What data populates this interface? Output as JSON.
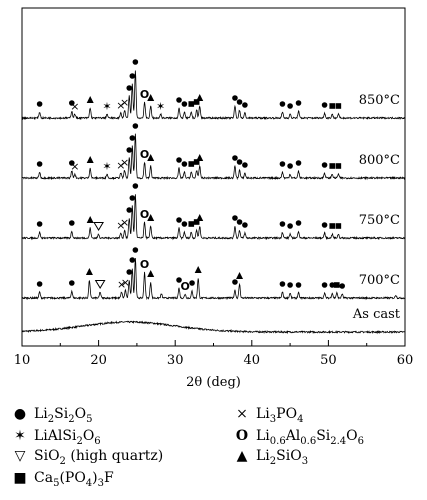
{
  "chart_data": {
    "type": "line",
    "xlabel": "2θ (deg)",
    "ylabel": "",
    "xlim": [
      10,
      60
    ],
    "xticks": [
      10,
      20,
      30,
      40,
      50,
      60
    ],
    "grid": false,
    "series": [
      {
        "name": "As cast",
        "baseline": 0,
        "label": "As cast",
        "hump": {
          "center": 24,
          "width": 6,
          "height": 10
        },
        "peaks": []
      },
      {
        "name": "700°C",
        "baseline": 1,
        "label": "700°C",
        "peaks": [
          {
            "x": 12.3,
            "h": 6,
            "m": "dot"
          },
          {
            "x": 16.5,
            "h": 7,
            "m": "dot"
          },
          {
            "x": 18.8,
            "h": 18,
            "m": "tri"
          },
          {
            "x": 20.2,
            "h": 6,
            "m": "tri-open"
          },
          {
            "x": 23.0,
            "h": 6,
            "m": "cross"
          },
          {
            "x": 23.5,
            "h": 8,
            "m": "cross"
          },
          {
            "x": 24.0,
            "h": 18,
            "m": "dot"
          },
          {
            "x": 24.4,
            "h": 30,
            "m": "dot"
          },
          {
            "x": 24.8,
            "h": 40,
            "m": "dot"
          },
          {
            "x": 26.0,
            "h": 26,
            "m": "circle"
          },
          {
            "x": 26.8,
            "h": 16,
            "m": "tri"
          },
          {
            "x": 28.2,
            "h": 4
          },
          {
            "x": 30.5,
            "h": 10,
            "m": "dot"
          },
          {
            "x": 31.3,
            "h": 4,
            "m": "circle"
          },
          {
            "x": 32.2,
            "h": 7,
            "m": "dot"
          },
          {
            "x": 33.0,
            "h": 20,
            "m": "tri"
          },
          {
            "x": 37.8,
            "h": 8,
            "m": "dot"
          },
          {
            "x": 38.4,
            "h": 14,
            "m": "tri"
          },
          {
            "x": 44.0,
            "h": 6,
            "m": "dot"
          },
          {
            "x": 45.0,
            "h": 5,
            "m": "dot"
          },
          {
            "x": 46.1,
            "h": 5,
            "m": "dot"
          },
          {
            "x": 49.5,
            "h": 5,
            "m": "dot"
          },
          {
            "x": 50.5,
            "h": 5,
            "m": "dot"
          },
          {
            "x": 51.1,
            "h": 5,
            "m": "sq"
          },
          {
            "x": 51.8,
            "h": 4,
            "m": "dot"
          },
          {
            "x": 58.8,
            "h": 3
          }
        ]
      },
      {
        "name": "750°C",
        "baseline": 2,
        "label": "750°C",
        "peaks": [
          {
            "x": 12.3,
            "h": 6,
            "m": "dot"
          },
          {
            "x": 16.5,
            "h": 7,
            "m": "dot"
          },
          {
            "x": 18.9,
            "h": 10,
            "m": "tri"
          },
          {
            "x": 20.0,
            "h": 4,
            "m": "tri-open"
          },
          {
            "x": 22.9,
            "h": 5,
            "m": "cross"
          },
          {
            "x": 23.4,
            "h": 8,
            "m": "cross"
          },
          {
            "x": 24.0,
            "h": 20,
            "m": "dot"
          },
          {
            "x": 24.4,
            "h": 32,
            "m": "dot"
          },
          {
            "x": 24.8,
            "h": 44,
            "m": "dot"
          },
          {
            "x": 26.0,
            "h": 16,
            "m": "circle"
          },
          {
            "x": 26.8,
            "h": 12,
            "m": "tri"
          },
          {
            "x": 30.5,
            "h": 10,
            "m": "dot"
          },
          {
            "x": 31.2,
            "h": 6,
            "m": "dot"
          },
          {
            "x": 32.1,
            "h": 6,
            "m": "sq"
          },
          {
            "x": 32.8,
            "h": 8,
            "m": "sq"
          },
          {
            "x": 33.2,
            "h": 12,
            "m": "tri"
          },
          {
            "x": 37.8,
            "h": 12,
            "m": "dot"
          },
          {
            "x": 38.4,
            "h": 8,
            "m": "dot"
          },
          {
            "x": 39.1,
            "h": 5,
            "m": "dot"
          },
          {
            "x": 44.0,
            "h": 6,
            "m": "dot"
          },
          {
            "x": 45.0,
            "h": 4,
            "m": "dot"
          },
          {
            "x": 46.1,
            "h": 7,
            "m": "dot"
          },
          {
            "x": 49.5,
            "h": 5,
            "m": "dot"
          },
          {
            "x": 50.5,
            "h": 4,
            "m": "sq"
          },
          {
            "x": 51.3,
            "h": 4,
            "m": "sq"
          }
        ]
      },
      {
        "name": "800°C",
        "baseline": 3,
        "label": "800°C",
        "peaks": [
          {
            "x": 12.3,
            "h": 6,
            "m": "dot"
          },
          {
            "x": 16.5,
            "h": 7,
            "m": "dot"
          },
          {
            "x": 16.9,
            "h": 4,
            "m": "cross"
          },
          {
            "x": 18.9,
            "h": 10,
            "m": "tri"
          },
          {
            "x": 21.1,
            "h": 4,
            "m": "star"
          },
          {
            "x": 22.9,
            "h": 5,
            "m": "cross"
          },
          {
            "x": 23.4,
            "h": 8,
            "m": "cross"
          },
          {
            "x": 24.0,
            "h": 20,
            "m": "dot"
          },
          {
            "x": 24.4,
            "h": 32,
            "m": "dot"
          },
          {
            "x": 24.8,
            "h": 44,
            "m": "dot"
          },
          {
            "x": 26.0,
            "h": 16,
            "m": "circle"
          },
          {
            "x": 26.8,
            "h": 12,
            "m": "tri"
          },
          {
            "x": 30.5,
            "h": 10,
            "m": "dot"
          },
          {
            "x": 31.2,
            "h": 6,
            "m": "dot"
          },
          {
            "x": 32.1,
            "h": 6,
            "m": "sq"
          },
          {
            "x": 32.8,
            "h": 8,
            "m": "sq"
          },
          {
            "x": 33.2,
            "h": 12,
            "m": "tri"
          },
          {
            "x": 37.8,
            "h": 12,
            "m": "dot"
          },
          {
            "x": 38.4,
            "h": 8,
            "m": "dot"
          },
          {
            "x": 39.1,
            "h": 5,
            "m": "dot"
          },
          {
            "x": 44.0,
            "h": 6,
            "m": "dot"
          },
          {
            "x": 45.0,
            "h": 4,
            "m": "dot"
          },
          {
            "x": 46.1,
            "h": 7,
            "m": "dot"
          },
          {
            "x": 49.5,
            "h": 5,
            "m": "dot"
          },
          {
            "x": 50.5,
            "h": 4,
            "m": "sq"
          },
          {
            "x": 51.3,
            "h": 4,
            "m": "sq"
          }
        ]
      },
      {
        "name": "850°C",
        "baseline": 4,
        "label": "850°C",
        "peaks": [
          {
            "x": 12.3,
            "h": 6,
            "m": "dot"
          },
          {
            "x": 16.5,
            "h": 7,
            "m": "dot"
          },
          {
            "x": 16.9,
            "h": 4,
            "m": "cross"
          },
          {
            "x": 18.9,
            "h": 10,
            "m": "tri"
          },
          {
            "x": 21.1,
            "h": 4,
            "m": "star"
          },
          {
            "x": 22.9,
            "h": 5,
            "m": "cross"
          },
          {
            "x": 23.4,
            "h": 8,
            "m": "cross"
          },
          {
            "x": 24.0,
            "h": 22,
            "m": "dot"
          },
          {
            "x": 24.4,
            "h": 34,
            "m": "dot"
          },
          {
            "x": 24.8,
            "h": 48,
            "m": "dot"
          },
          {
            "x": 26.0,
            "h": 16,
            "m": "circle"
          },
          {
            "x": 26.8,
            "h": 12,
            "m": "tri"
          },
          {
            "x": 28.1,
            "h": 4,
            "m": "star"
          },
          {
            "x": 30.5,
            "h": 10,
            "m": "dot"
          },
          {
            "x": 31.2,
            "h": 6,
            "m": "dot"
          },
          {
            "x": 32.1,
            "h": 6,
            "m": "sq"
          },
          {
            "x": 32.8,
            "h": 8,
            "m": "sq"
          },
          {
            "x": 33.2,
            "h": 12,
            "m": "tri"
          },
          {
            "x": 37.8,
            "h": 12,
            "m": "dot"
          },
          {
            "x": 38.4,
            "h": 8,
            "m": "dot"
          },
          {
            "x": 39.1,
            "h": 5,
            "m": "dot"
          },
          {
            "x": 44.0,
            "h": 6,
            "m": "dot"
          },
          {
            "x": 45.0,
            "h": 4,
            "m": "dot"
          },
          {
            "x": 46.1,
            "h": 7,
            "m": "dot"
          },
          {
            "x": 49.5,
            "h": 5,
            "m": "dot"
          },
          {
            "x": 50.5,
            "h": 4,
            "m": "sq"
          },
          {
            "x": 51.3,
            "h": 4,
            "m": "sq"
          }
        ]
      }
    ],
    "legend": {
      "placement": "bottom",
      "entries": [
        {
          "marker": "dot",
          "name": "Li2Si2O5"
        },
        {
          "marker": "star",
          "name": "LiAlSi2O6"
        },
        {
          "marker": "tri-open",
          "name": "SiO2 (high quartz)"
        },
        {
          "marker": "sq",
          "name": "Ca5(PO4)3F"
        },
        {
          "marker": "cross",
          "name": "Li3PO4"
        },
        {
          "marker": "circle",
          "name": "Li0.6Al0.6Si2.4O6"
        },
        {
          "marker": "tri",
          "name": "Li2SiO3"
        }
      ]
    }
  }
}
